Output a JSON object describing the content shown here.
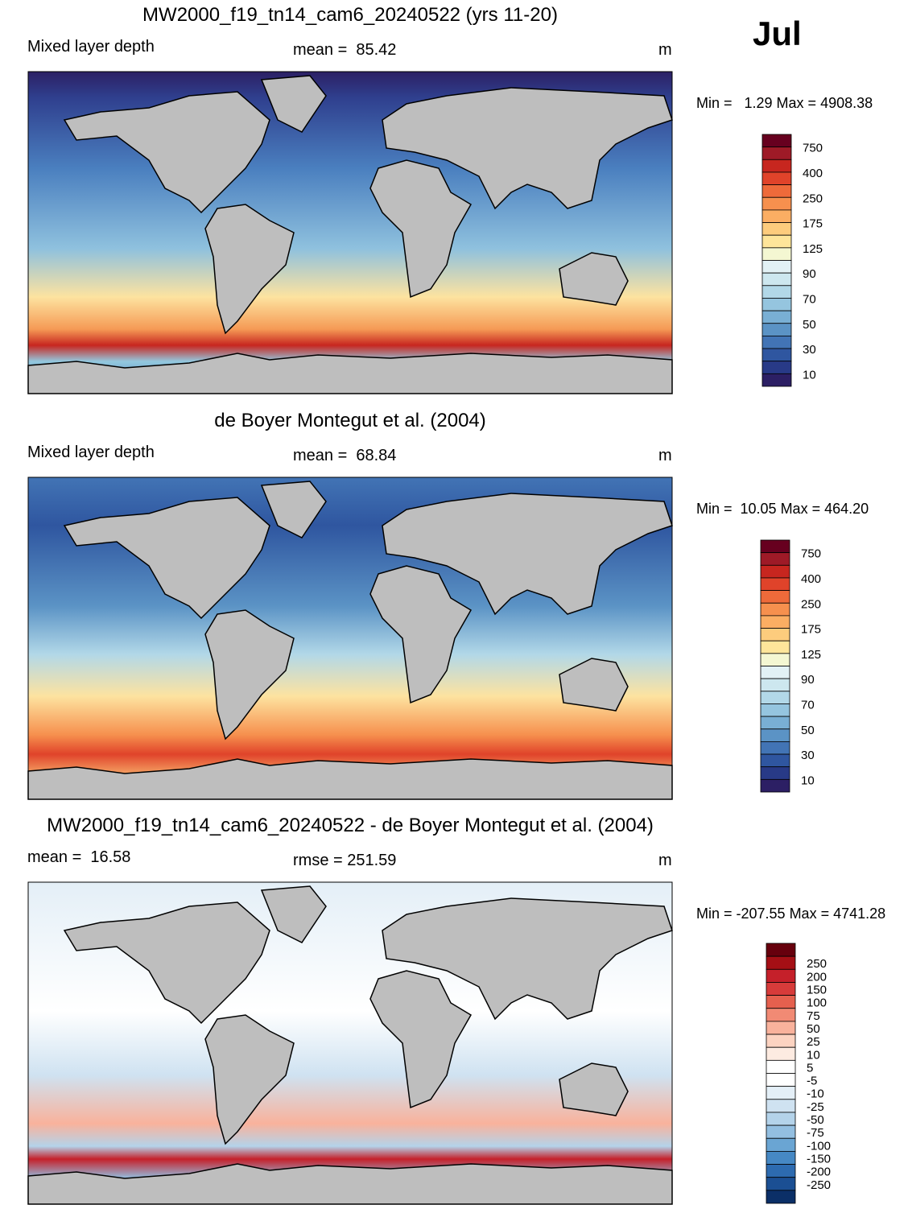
{
  "month": "Jul",
  "panels": [
    {
      "title": "MW2000_f19_tn14_cam6_20240522 (yrs 11-20)",
      "left": "Mixed layer depth",
      "center": "mean =  85.42",
      "right": "m",
      "minmax": "Min =   1.29 Max = 4908.38",
      "colorbar": {
        "labels": [
          "750",
          "400",
          "250",
          "175",
          "125",
          "90",
          "70",
          "50",
          "30",
          "10"
        ],
        "colors": [
          "#67001f",
          "#9e1a27",
          "#c7261f",
          "#e0432a",
          "#ee6a3a",
          "#f6904e",
          "#fbae63",
          "#fdcc7d",
          "#fee59a",
          "#f4f7d2",
          "#e2f1f5",
          "#cde7ef",
          "#b2d8e8",
          "#95c5df",
          "#79afd4",
          "#5b93c5",
          "#4274b5",
          "#2f56a0",
          "#283a87",
          "#2c1f64"
        ]
      }
    },
    {
      "title": "de Boyer Montegut et al. (2004)",
      "left": "Mixed layer depth",
      "center": "mean =  68.84",
      "right": "m",
      "minmax": "Min =  10.05 Max = 464.20",
      "colorbar": {
        "labels": [
          "750",
          "400",
          "250",
          "175",
          "125",
          "90",
          "70",
          "50",
          "30",
          "10"
        ],
        "colors": [
          "#67001f",
          "#9e1a27",
          "#c7261f",
          "#e0432a",
          "#ee6a3a",
          "#f6904e",
          "#fbae63",
          "#fdcc7d",
          "#fee59a",
          "#f4f7d2",
          "#e2f1f5",
          "#cde7ef",
          "#b2d8e8",
          "#95c5df",
          "#79afd4",
          "#5b93c5",
          "#4274b5",
          "#2f56a0",
          "#283a87",
          "#2c1f64"
        ]
      }
    },
    {
      "title": "MW2000_f19_tn14_cam6_20240522 - de Boyer Montegut et al. (2004)",
      "left": "mean =  16.58",
      "center": "rmse = 251.59",
      "right": "m",
      "minmax": "Min = -207.55 Max = 4741.28",
      "colorbar": {
        "labels": [
          "250",
          "200",
          "150",
          "100",
          "75",
          "50",
          "25",
          "10",
          "5",
          "-5",
          "-10",
          "-25",
          "-50",
          "-75",
          "-100",
          "-150",
          "-200",
          "-250"
        ],
        "colors": [
          "#67000d",
          "#a50f15",
          "#c5202a",
          "#d73b3a",
          "#e5604e",
          "#f18a74",
          "#f9b29c",
          "#fcd3c1",
          "#fdebe1",
          "#ffffff",
          "#ffffff",
          "#e4eff7",
          "#cfe2f1",
          "#b4d3ea",
          "#93bfe1",
          "#6aa5d3",
          "#4688c4",
          "#2d6bb0",
          "#1b4f93",
          "#0b2f67"
        ]
      }
    }
  ]
}
